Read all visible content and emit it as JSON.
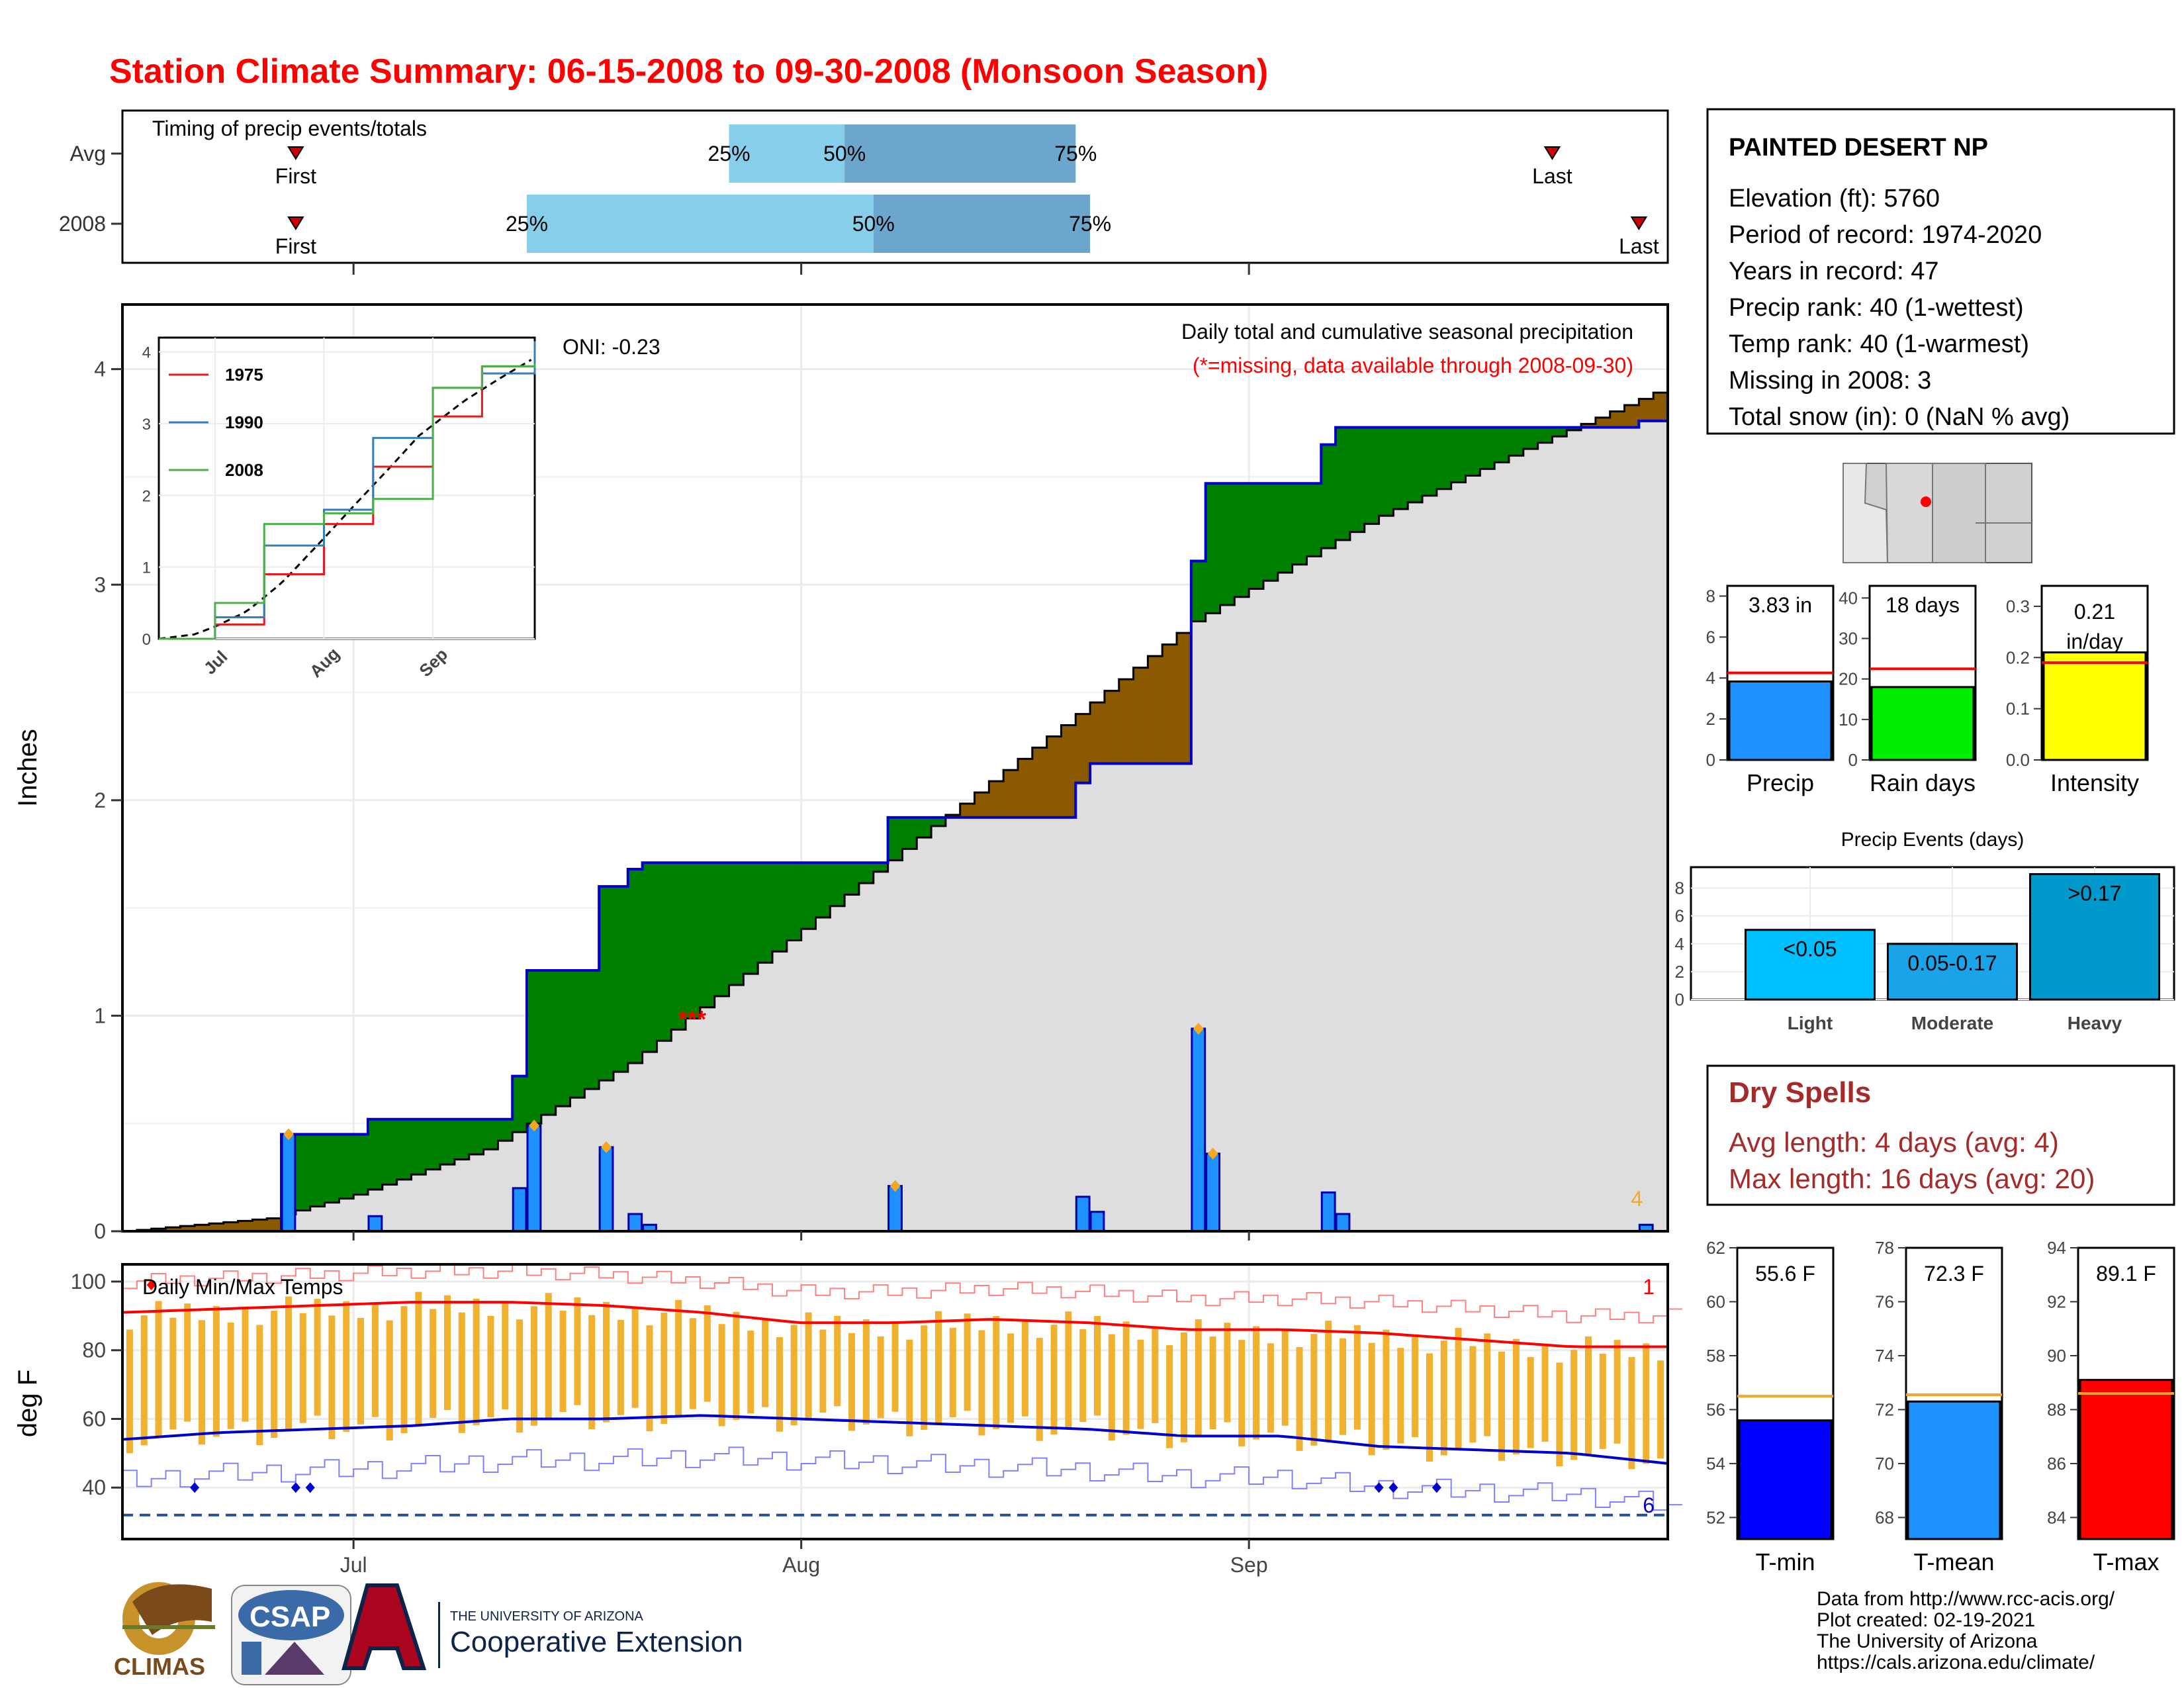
{
  "title": "Station Climate Summary: 06-15-2008 to 09-30-2008 (Monsoon Season)",
  "timing": {
    "label": "Timing of precip events/totals",
    "rows": [
      {
        "name": "Avg",
        "first": "06-27",
        "q25": "07-27",
        "q50": "08-04",
        "q75": "08-20",
        "last": "09-22"
      },
      {
        "name": "2008",
        "first": "06-27",
        "q25": "07-13",
        "q50": "08-06",
        "q75": "08-21",
        "last": "09-28"
      }
    ],
    "first_label": "First",
    "last_label": "Last",
    "q_labels": [
      "25%",
      "50%",
      "75%"
    ]
  },
  "main_chart": {
    "annot_title": "Daily total and cumulative seasonal precipitation",
    "annot_missing": "(*=missing, data available through 2008-09-30)",
    "missing_marker": "***",
    "oni": "ONI: -0.23",
    "ylabel": "Inches",
    "yticks": [
      0,
      1,
      2,
      3,
      4
    ],
    "xticks": [
      "Jul",
      "Aug",
      "Sep"
    ],
    "corner_count": "4"
  },
  "inset": {
    "legend": [
      {
        "name": "1975",
        "color": "#e41a1c"
      },
      {
        "name": "1990",
        "color": "#377eb8"
      },
      {
        "name": "2008",
        "color": "#4daf4a"
      }
    ],
    "yticks": [
      "0",
      "1",
      "2",
      "3",
      "4"
    ],
    "xticks": [
      "Jul",
      "Aug",
      "Sep"
    ]
  },
  "temp_chart": {
    "label": "Daily Min/Max Temps",
    "ylabel": "deg F",
    "yticks": [
      40,
      60,
      80,
      100
    ],
    "count_top": "1",
    "count_bottom": "6"
  },
  "station": {
    "name": "PAINTED DESERT NP",
    "lines": [
      "Elevation (ft): 5760",
      "Period of record: 1974-2020",
      "Years in record: 47",
      "Precip rank: 40 (1-wettest)",
      "Temp rank: 40 (1-warmest)",
      "Missing in 2008: 3",
      "Total snow (in): 0 (NaN % avg)"
    ]
  },
  "mini_bars": [
    {
      "title": "Precip",
      "value_label": "3.83 in",
      "value": 3.83,
      "avg": 4.25,
      "ymax": 8.5,
      "ticks": [
        0,
        2,
        4,
        6,
        8
      ],
      "color": "#1e90ff"
    },
    {
      "title": "Rain days",
      "value_label": "18 days",
      "value": 18,
      "avg": 22.5,
      "ymax": 43,
      "ticks": [
        0,
        10,
        20,
        30,
        40
      ],
      "color": "#00ee00"
    },
    {
      "title": "Intensity",
      "value_label": "0.21 in/day",
      "value": 0.21,
      "avg": 0.19,
      "ymax": 0.34,
      "ticks": [
        "0.0",
        "0.1",
        "0.2",
        "0.3"
      ],
      "color": "#ffff00"
    }
  ],
  "precip_events": {
    "title": "Precip Events (days)",
    "categories": [
      "Light",
      "Moderate",
      "Heavy"
    ],
    "labels": [
      "<0.05",
      "0.05-0.17",
      ">0.17"
    ],
    "values": [
      5,
      4,
      9
    ],
    "ticks": [
      0,
      2,
      4,
      6,
      8
    ],
    "colors": [
      "#00bfff",
      "#1aa3e8",
      "#0099cc"
    ]
  },
  "dry_spells": {
    "title": "Dry Spells",
    "avg_line": "Avg length: 4 days (avg: 4)",
    "max_line": "Max length: 16 days (avg: 20)"
  },
  "temp_bars": [
    {
      "title": "T-min",
      "value_label": "55.6 F",
      "value": 55.6,
      "avg": 56.5,
      "ymin": 51.2,
      "ymax": 62.0,
      "ticks": [
        52,
        54,
        56,
        58,
        60,
        62
      ],
      "color": "#0000ff"
    },
    {
      "title": "T-mean",
      "value_label": "72.3 F",
      "value": 72.3,
      "avg": 72.55,
      "ymin": 67.2,
      "ymax": 78.0,
      "ticks": [
        68,
        70,
        72,
        74,
        76,
        78
      ],
      "color": "#1e90ff"
    },
    {
      "title": "T-max",
      "value_label": "89.1 F",
      "value": 89.1,
      "avg": 88.6,
      "ymin": 83.2,
      "ymax": 94.0,
      "ticks": [
        84,
        86,
        88,
        90,
        92,
        94
      ],
      "color": "#ff0000"
    }
  ],
  "logos": {
    "climas": "CLIMAS",
    "csap": "CSAP",
    "ua_small": "THE UNIVERSITY OF ARIZONA",
    "ua_big": "Cooperative Extension"
  },
  "footer": [
    "Data from http://www.rcc-acis.org/",
    "Plot created: 02-19-2021",
    "The University of Arizona",
    "https://cals.arizona.edu/climate/"
  ],
  "colors": {
    "title": "#ff0000",
    "above_avg": "#008000",
    "below_avg": "#8b5a00",
    "avg_area": "#dedede",
    "cum_line": "#0000cd",
    "daily_bar": "#1e90ff",
    "temp_range": "#f0b030",
    "dry_spells": "#a52a2a"
  },
  "chart_data": [
    {
      "type": "area",
      "title": "Daily total and cumulative seasonal precipitation",
      "ylabel": "Inches",
      "ylim": [
        0,
        4.3
      ],
      "x_start": "2008-06-15",
      "x_end": "2008-09-30",
      "daily_precip_2008": [
        {
          "date": "2008-06-26",
          "value": 0.45
        },
        {
          "date": "2008-07-02",
          "value": 0.07
        },
        {
          "date": "2008-07-12",
          "value": 0.2
        },
        {
          "date": "2008-07-13",
          "value": 0.49
        },
        {
          "date": "2008-07-18",
          "value": 0.39
        },
        {
          "date": "2008-07-20",
          "value": 0.08
        },
        {
          "date": "2008-07-21",
          "value": 0.03
        },
        {
          "date": "2008-08-07",
          "value": 0.21
        },
        {
          "date": "2008-08-20",
          "value": 0.16
        },
        {
          "date": "2008-08-21",
          "value": 0.09
        },
        {
          "date": "2008-08-28",
          "value": 0.94
        },
        {
          "date": "2008-08-29",
          "value": 0.36
        },
        {
          "date": "2008-09-06",
          "value": 0.18
        },
        {
          "date": "2008-09-07",
          "value": 0.08
        },
        {
          "date": "2008-09-28",
          "value": 0.03
        }
      ],
      "avg_cumulative": [
        {
          "date": "2008-06-15",
          "value": 0.0
        },
        {
          "date": "2008-06-25",
          "value": 0.06
        },
        {
          "date": "2008-07-01",
          "value": 0.17
        },
        {
          "date": "2008-07-10",
          "value": 0.38
        },
        {
          "date": "2008-07-20",
          "value": 0.78
        },
        {
          "date": "2008-07-31",
          "value": 1.35
        },
        {
          "date": "2008-08-10",
          "value": 1.88
        },
        {
          "date": "2008-08-20",
          "value": 2.4
        },
        {
          "date": "2008-08-28",
          "value": 2.83
        },
        {
          "date": "2008-09-10",
          "value": 3.32
        },
        {
          "date": "2008-09-20",
          "value": 3.63
        },
        {
          "date": "2008-09-30",
          "value": 3.92
        }
      ],
      "series": [
        {
          "name": "1975",
          "x": [
            "06-15",
            "07-01",
            "07-15",
            "08-01",
            "08-15",
            "09-01",
            "09-15",
            "09-30"
          ],
          "values": [
            0.0,
            0.2,
            0.9,
            1.6,
            2.4,
            3.1,
            3.8,
            4.05
          ]
        },
        {
          "name": "1990",
          "x": [
            "06-15",
            "07-01",
            "07-15",
            "08-01",
            "08-15",
            "09-01",
            "09-15",
            "09-30"
          ],
          "values": [
            0.0,
            0.3,
            1.3,
            1.8,
            2.8,
            3.5,
            3.7,
            4.15
          ]
        },
        {
          "name": "2008",
          "x": [
            "06-15",
            "07-01",
            "07-15",
            "08-01",
            "08-15",
            "09-01",
            "09-15",
            "09-30"
          ],
          "values": [
            0.0,
            0.5,
            1.6,
            1.75,
            1.95,
            3.5,
            3.8,
            3.83
          ]
        }
      ]
    },
    {
      "type": "bar",
      "title": "Daily Min/Max Temps",
      "ylabel": "deg F",
      "ylim": [
        25,
        105
      ],
      "avg_max": [
        91,
        92,
        93,
        94,
        94,
        93,
        91,
        88,
        88,
        89,
        88,
        86,
        86,
        85,
        83,
        81,
        81
      ],
      "avg_min": [
        54,
        56,
        57,
        58,
        60,
        60,
        61,
        60,
        59,
        58,
        57,
        55,
        55,
        52,
        51,
        50,
        47
      ],
      "freeze_line": 32
    },
    {
      "type": "bar",
      "title": "Precip Events (days)",
      "categories": [
        "Light",
        "Moderate",
        "Heavy"
      ],
      "values": [
        5,
        4,
        9
      ]
    }
  ]
}
